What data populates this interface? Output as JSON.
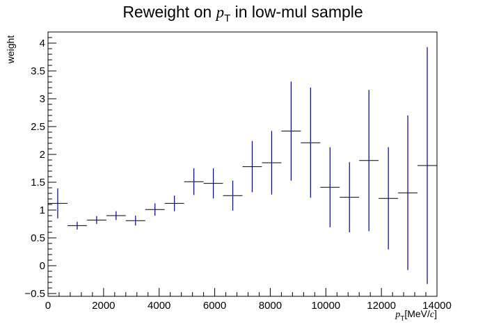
{
  "chart_data": {
    "type": "scatter",
    "title": {
      "prefix": "Reweight on ",
      "var_symbol": "p",
      "var_subscript": "T",
      "suffix": " in low-mul sample"
    },
    "xlabel": {
      "symbol": "p",
      "subscript": "T",
      "unit_open": "[MeV/",
      "unit_c": "c",
      "unit_close": "]"
    },
    "ylabel": "weight",
    "xlim": [
      0,
      14000
    ],
    "ylim": [
      -0.55,
      4.2
    ],
    "x_ticks": [
      0,
      2000,
      4000,
      6000,
      8000,
      10000,
      12000,
      14000
    ],
    "x_tick_labels": [
      "0",
      "2000",
      "4000",
      "6000",
      "8000",
      "10000",
      "12000",
      "14000"
    ],
    "y_ticks": [
      -0.5,
      0,
      0.5,
      1,
      1.5,
      2,
      2.5,
      3,
      3.5,
      4
    ],
    "y_tick_labels": [
      "−0.5",
      "0",
      "0.5",
      "1",
      "1.5",
      "2",
      "2.5",
      "3",
      "3.5",
      "4"
    ],
    "grid": false,
    "marker_color": "#00008b",
    "series": [
      {
        "points": [
          {
            "x": 350,
            "xerr": 350,
            "y": 1.12,
            "yerr": 0.27
          },
          {
            "x": 1050,
            "xerr": 350,
            "y": 0.72,
            "yerr": 0.07
          },
          {
            "x": 1750,
            "xerr": 350,
            "y": 0.82,
            "yerr": 0.07
          },
          {
            "x": 2450,
            "xerr": 350,
            "y": 0.9,
            "yerr": 0.08
          },
          {
            "x": 3150,
            "xerr": 350,
            "y": 0.81,
            "yerr": 0.09
          },
          {
            "x": 3850,
            "xerr": 350,
            "y": 1.01,
            "yerr": 0.11
          },
          {
            "x": 4550,
            "xerr": 350,
            "y": 1.12,
            "yerr": 0.14
          },
          {
            "x": 5250,
            "xerr": 350,
            "y": 1.51,
            "yerr": 0.24
          },
          {
            "x": 5950,
            "xerr": 350,
            "y": 1.48,
            "yerr": 0.27
          },
          {
            "x": 6650,
            "xerr": 350,
            "y": 1.26,
            "yerr": 0.27
          },
          {
            "x": 7350,
            "xerr": 350,
            "y": 1.78,
            "yerr": 0.46
          },
          {
            "x": 8050,
            "xerr": 350,
            "y": 1.85,
            "yerr": 0.57
          },
          {
            "x": 8750,
            "xerr": 350,
            "y": 2.42,
            "yerr": 0.89
          },
          {
            "x": 9450,
            "xerr": 350,
            "y": 2.21,
            "yerr": 0.99
          },
          {
            "x": 10150,
            "xerr": 350,
            "y": 1.41,
            "yerr": 0.72
          },
          {
            "x": 10850,
            "xerr": 350,
            "y": 1.23,
            "yerr": 0.63
          },
          {
            "x": 11550,
            "xerr": 350,
            "y": 1.89,
            "yerr": 1.27
          },
          {
            "x": 12250,
            "xerr": 350,
            "y": 1.21,
            "yerr": 0.92
          },
          {
            "x": 12950,
            "xerr": 350,
            "y": 1.31,
            "yerr": 1.39
          },
          {
            "x": 13650,
            "xerr": 350,
            "y": 1.8,
            "yerr": 2.13
          }
        ]
      }
    ]
  }
}
